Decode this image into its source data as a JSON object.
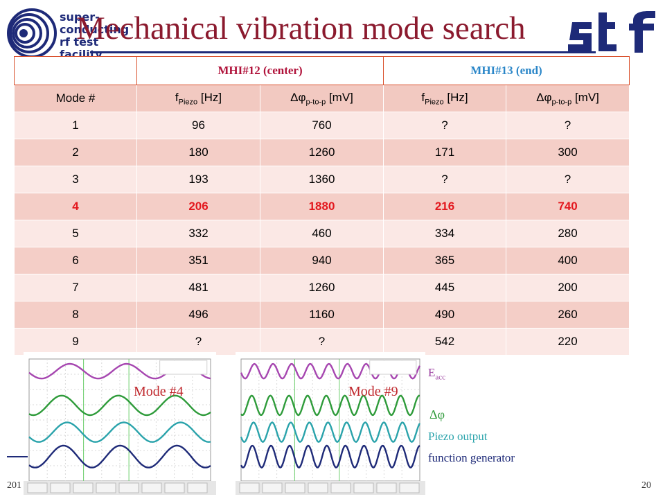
{
  "header": {
    "title": "Mechanical vibration mode search",
    "logo_lines": [
      "super-",
      "conducting",
      "rf   test",
      "facility"
    ],
    "logo_right": "stf"
  },
  "table": {
    "group_headers": [
      "MHI#12 (center)",
      "MHI#13 (end)"
    ],
    "col_mode": "Mode #",
    "col_f": {
      "main": "f",
      "sub": "Piezo",
      "unit": " [Hz]"
    },
    "col_dphi": {
      "main": "Δφ",
      "sub": "p-to-p",
      "unit": " [mV]"
    },
    "rows": [
      [
        "1",
        "96",
        "760",
        "?",
        "?"
      ],
      [
        "2",
        "180",
        "1260",
        "171",
        "300"
      ],
      [
        "3",
        "193",
        "1360",
        "?",
        "?"
      ],
      [
        "4",
        "206",
        "1880",
        "216",
        "740"
      ],
      [
        "5",
        "332",
        "460",
        "334",
        "280"
      ],
      [
        "6",
        "351",
        "940",
        "365",
        "400"
      ],
      [
        "7",
        "481",
        "1260",
        "445",
        "200"
      ],
      [
        "8",
        "496",
        "1160",
        "490",
        "260"
      ],
      [
        "9",
        "?",
        "?",
        "542",
        "220"
      ]
    ],
    "highlight_row": 3,
    "colors": {
      "header_band": "#d9502c",
      "highlight_text": "#e3181e"
    }
  },
  "scopes": {
    "left_label": "Mode #4",
    "right_label": "Mode #9",
    "left_periods": 3.2,
    "right_periods": 9.6
  },
  "legend": {
    "eacc_main": "E",
    "eacc_sub": "acc",
    "dphi": "Δφ",
    "piezo": "Piezo output",
    "func": "function generator"
  },
  "footer": {
    "left": "201",
    "page": "20"
  }
}
